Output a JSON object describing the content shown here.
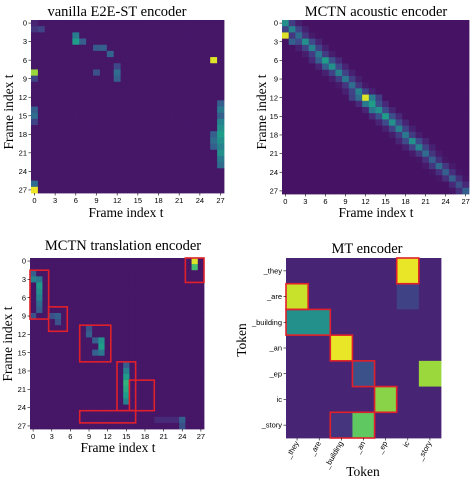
{
  "chart_data": [
    {
      "type": "heatmap",
      "title": "vanilla E2E-ST encoder",
      "xlabel": "Frame index t",
      "ylabel": "Frame index t",
      "ticks": [
        "0",
        "3",
        "6",
        "9",
        "12",
        "15",
        "18",
        "21",
        "24",
        "27"
      ],
      "size": 28,
      "colormap": "viridis",
      "background": 0.06,
      "diagonal": [],
      "cells": [
        {
          "r": 0,
          "c": 0,
          "v": 0.1
        },
        {
          "r": 1,
          "c": 0,
          "v": 0.15
        },
        {
          "r": 1,
          "c": 1,
          "v": 0.2
        },
        {
          "r": 2,
          "c": 6,
          "v": 0.42
        },
        {
          "r": 3,
          "c": 6,
          "v": 0.55
        },
        {
          "r": 3,
          "c": 7,
          "v": 0.3
        },
        {
          "r": 4,
          "c": 9,
          "v": 0.28
        },
        {
          "r": 4,
          "c": 10,
          "v": 0.3
        },
        {
          "r": 5,
          "c": 11,
          "v": 0.32
        },
        {
          "r": 6,
          "c": 26,
          "v": 0.95
        },
        {
          "r": 7,
          "c": 12,
          "v": 0.22
        },
        {
          "r": 8,
          "c": 12,
          "v": 0.35
        },
        {
          "r": 9,
          "c": 12,
          "v": 0.3
        },
        {
          "r": 8,
          "c": 0,
          "v": 0.85
        },
        {
          "r": 9,
          "c": 0,
          "v": 0.2
        },
        {
          "r": 8,
          "c": 9,
          "v": 0.25
        },
        {
          "r": 14,
          "c": 0,
          "v": 0.3
        },
        {
          "r": 15,
          "c": 0,
          "v": 0.35
        },
        {
          "r": 16,
          "c": 0,
          "v": 0.2
        },
        {
          "r": 13,
          "c": 27,
          "v": 0.3
        },
        {
          "r": 14,
          "c": 27,
          "v": 0.4
        },
        {
          "r": 15,
          "c": 27,
          "v": 0.3
        },
        {
          "r": 16,
          "c": 27,
          "v": 0.45
        },
        {
          "r": 17,
          "c": 27,
          "v": 0.5
        },
        {
          "r": 18,
          "c": 27,
          "v": 0.55
        },
        {
          "r": 19,
          "c": 27,
          "v": 0.5
        },
        {
          "r": 20,
          "c": 27,
          "v": 0.45
        },
        {
          "r": 21,
          "c": 27,
          "v": 0.5
        },
        {
          "r": 22,
          "c": 27,
          "v": 0.4
        },
        {
          "r": 23,
          "c": 27,
          "v": 0.35
        },
        {
          "r": 18,
          "c": 26,
          "v": 0.3
        },
        {
          "r": 19,
          "c": 26,
          "v": 0.35
        },
        {
          "r": 20,
          "c": 26,
          "v": 0.3
        },
        {
          "r": 26,
          "c": 0,
          "v": 0.35
        },
        {
          "r": 27,
          "c": 0,
          "v": 0.98
        }
      ],
      "boxes": []
    },
    {
      "type": "heatmap",
      "title": "MCTN acoustic encoder",
      "xlabel": "Frame index t",
      "ylabel": "Frame index t",
      "ticks": [
        "0",
        "3",
        "6",
        "9",
        "12",
        "15",
        "18",
        "21",
        "24",
        "27"
      ],
      "size": 28,
      "colormap": "viridis",
      "background": 0.05,
      "diagonal": [
        0.4,
        0.45,
        0.35,
        0.5,
        0.45,
        0.4,
        0.55,
        0.5,
        0.45,
        0.4,
        0.35,
        0.45,
        0.95,
        0.55,
        0.5,
        0.55,
        0.5,
        0.45,
        0.4,
        0.5,
        0.45,
        0.35,
        0.3,
        0.35,
        0.3,
        0.3,
        0.25,
        0.3
      ],
      "cells": [
        {
          "r": 0,
          "c": 0,
          "v": 0.5
        },
        {
          "r": 2,
          "c": 0,
          "v": 0.95
        },
        {
          "r": 3,
          "c": 1,
          "v": 0.3
        },
        {
          "r": 6,
          "c": 5,
          "v": 0.3
        },
        {
          "r": 7,
          "c": 6,
          "v": 0.3
        },
        {
          "r": 12,
          "c": 11,
          "v": 0.35
        },
        {
          "r": 13,
          "c": 12,
          "v": 0.4
        },
        {
          "r": 14,
          "c": 13,
          "v": 0.4
        }
      ],
      "boxes": []
    },
    {
      "type": "heatmap",
      "title": "MCTN translation encoder",
      "xlabel": "Frame index t",
      "ylabel": "Frame index t",
      "ticks": [
        "0",
        "3",
        "6",
        "9",
        "12",
        "15",
        "18",
        "21",
        "24",
        "27"
      ],
      "size": 28,
      "colormap": "viridis",
      "background": 0.06,
      "diagonal": [],
      "cells": [
        {
          "r": 0,
          "c": 26,
          "v": 0.95
        },
        {
          "r": 1,
          "c": 26,
          "v": 0.7
        },
        {
          "r": 2,
          "c": 0,
          "v": 0.3
        },
        {
          "r": 3,
          "c": 0,
          "v": 0.45
        },
        {
          "r": 3,
          "c": 1,
          "v": 0.4
        },
        {
          "r": 4,
          "c": 1,
          "v": 0.55
        },
        {
          "r": 5,
          "c": 1,
          "v": 0.5
        },
        {
          "r": 6,
          "c": 1,
          "v": 0.45
        },
        {
          "r": 7,
          "c": 1,
          "v": 0.35
        },
        {
          "r": 8,
          "c": 1,
          "v": 0.3
        },
        {
          "r": 9,
          "c": 0,
          "v": 0.25
        },
        {
          "r": 9,
          "c": 3,
          "v": 0.25
        },
        {
          "r": 9,
          "c": 4,
          "v": 0.3
        },
        {
          "r": 10,
          "c": 4,
          "v": 0.25
        },
        {
          "r": 11,
          "c": 9,
          "v": 0.25
        },
        {
          "r": 12,
          "c": 9,
          "v": 0.3
        },
        {
          "r": 13,
          "c": 10,
          "v": 0.3
        },
        {
          "r": 13,
          "c": 11,
          "v": 0.5
        },
        {
          "r": 14,
          "c": 11,
          "v": 0.55
        },
        {
          "r": 15,
          "c": 11,
          "v": 0.4
        },
        {
          "r": 15,
          "c": 10,
          "v": 0.3
        },
        {
          "r": 18,
          "c": 15,
          "v": 0.45
        },
        {
          "r": 19,
          "c": 15,
          "v": 0.55
        },
        {
          "r": 20,
          "c": 15,
          "v": 0.65
        },
        {
          "r": 21,
          "c": 15,
          "v": 0.6
        },
        {
          "r": 22,
          "c": 15,
          "v": 0.55
        },
        {
          "r": 23,
          "c": 15,
          "v": 0.45
        },
        {
          "r": 17,
          "c": 15,
          "v": 0.3
        },
        {
          "r": 26,
          "c": 24,
          "v": 0.3
        },
        {
          "r": 27,
          "c": 24,
          "v": 0.25
        },
        {
          "r": 26,
          "c": 20,
          "v": 0.12
        },
        {
          "r": 26,
          "c": 21,
          "v": 0.12
        },
        {
          "r": 26,
          "c": 22,
          "v": 0.12
        },
        {
          "r": 26,
          "c": 23,
          "v": 0.12
        }
      ],
      "boxes": [
        {
          "c0": 0,
          "c1": 2,
          "r0": 2,
          "r1": 9
        },
        {
          "c0": 3,
          "c1": 5,
          "r0": 8,
          "r1": 11
        },
        {
          "c0": 8,
          "c1": 12,
          "r0": 11,
          "r1": 16
        },
        {
          "c0": 14,
          "c1": 16,
          "r0": 17,
          "r1": 24
        },
        {
          "c0": 16,
          "c1": 19,
          "r0": 20,
          "r1": 24
        },
        {
          "c0": 8,
          "c1": 16,
          "r0": 25,
          "r1": 26
        },
        {
          "c0": 25,
          "c1": 27,
          "r0": 0,
          "r1": 3
        }
      ]
    },
    {
      "type": "heatmap",
      "title": "MT encoder",
      "xlabel": "Token",
      "ylabel": "Token",
      "ticks": [
        "_they",
        "_are",
        "_building",
        "_an",
        "_ep",
        "ic",
        "_story"
      ],
      "size": 7,
      "colormap": "viridis",
      "background": 0.1,
      "diagonal": [],
      "cells": [
        {
          "r": 0,
          "c": 5,
          "v": 0.97
        },
        {
          "r": 1,
          "c": 0,
          "v": 0.92
        },
        {
          "r": 1,
          "c": 5,
          "v": 0.2
        },
        {
          "r": 2,
          "c": 0,
          "v": 0.5
        },
        {
          "r": 2,
          "c": 1,
          "v": 0.5
        },
        {
          "r": 3,
          "c": 2,
          "v": 0.97
        },
        {
          "r": 4,
          "c": 3,
          "v": 0.25
        },
        {
          "r": 4,
          "c": 6,
          "v": 0.85
        },
        {
          "r": 5,
          "c": 4,
          "v": 0.82
        },
        {
          "r": 6,
          "c": 3,
          "v": 0.75
        },
        {
          "r": 6,
          "c": 2,
          "v": 0.15
        }
      ],
      "boxes": [
        {
          "c0": 0,
          "c1": 0,
          "r0": 1,
          "r1": 1
        },
        {
          "c0": 0,
          "c1": 1,
          "r0": 2,
          "r1": 2
        },
        {
          "c0": 5,
          "c1": 5,
          "r0": 0,
          "r1": 0
        },
        {
          "c0": 2,
          "c1": 2,
          "r0": 3,
          "r1": 3
        },
        {
          "c0": 3,
          "c1": 3,
          "r0": 4,
          "r1": 4
        },
        {
          "c0": 4,
          "c1": 4,
          "r0": 5,
          "r1": 5
        },
        {
          "c0": 2,
          "c1": 3,
          "r0": 6,
          "r1": 6
        }
      ]
    }
  ]
}
